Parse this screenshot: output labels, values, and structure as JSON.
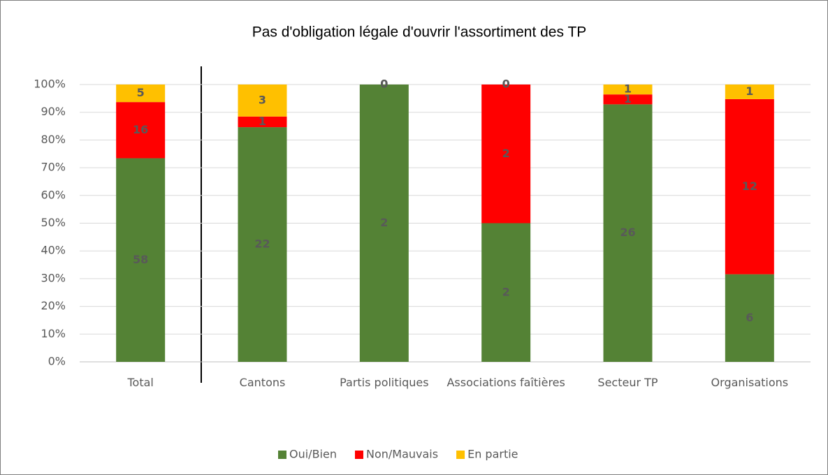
{
  "chart_data": {
    "type": "bar",
    "stacking": "percent",
    "title": "Pas d'obligation légale d'ouvrir l'assortiment des TP",
    "categories": [
      "Total",
      "Cantons",
      "Partis politiques",
      "Associations faîtières",
      "Secteur TP",
      "Organisations"
    ],
    "series": [
      {
        "name": "Oui/Bien",
        "color": "#548235",
        "values": [
          58,
          22,
          2,
          2,
          26,
          6
        ]
      },
      {
        "name": "Non/Mauvais",
        "color": "#ff0000",
        "values": [
          16,
          1,
          0,
          2,
          1,
          12
        ]
      },
      {
        "name": "En partie",
        "color": "#ffc000",
        "values": [
          5,
          3,
          0,
          0,
          1,
          1
        ]
      }
    ],
    "ylim": [
      0,
      100
    ],
    "yticks": [
      {
        "value": 0,
        "label": "0%"
      },
      {
        "value": 10,
        "label": "10%"
      },
      {
        "value": 20,
        "label": "20%"
      },
      {
        "value": 30,
        "label": "30%"
      },
      {
        "value": 40,
        "label": "40%"
      },
      {
        "value": 50,
        "label": "50%"
      },
      {
        "value": 60,
        "label": "60%"
      },
      {
        "value": 70,
        "label": "70%"
      },
      {
        "value": 80,
        "label": "80%"
      },
      {
        "value": 90,
        "label": "90%"
      },
      {
        "value": 100,
        "label": "100%"
      }
    ],
    "grid": true,
    "legend": "bottom"
  }
}
